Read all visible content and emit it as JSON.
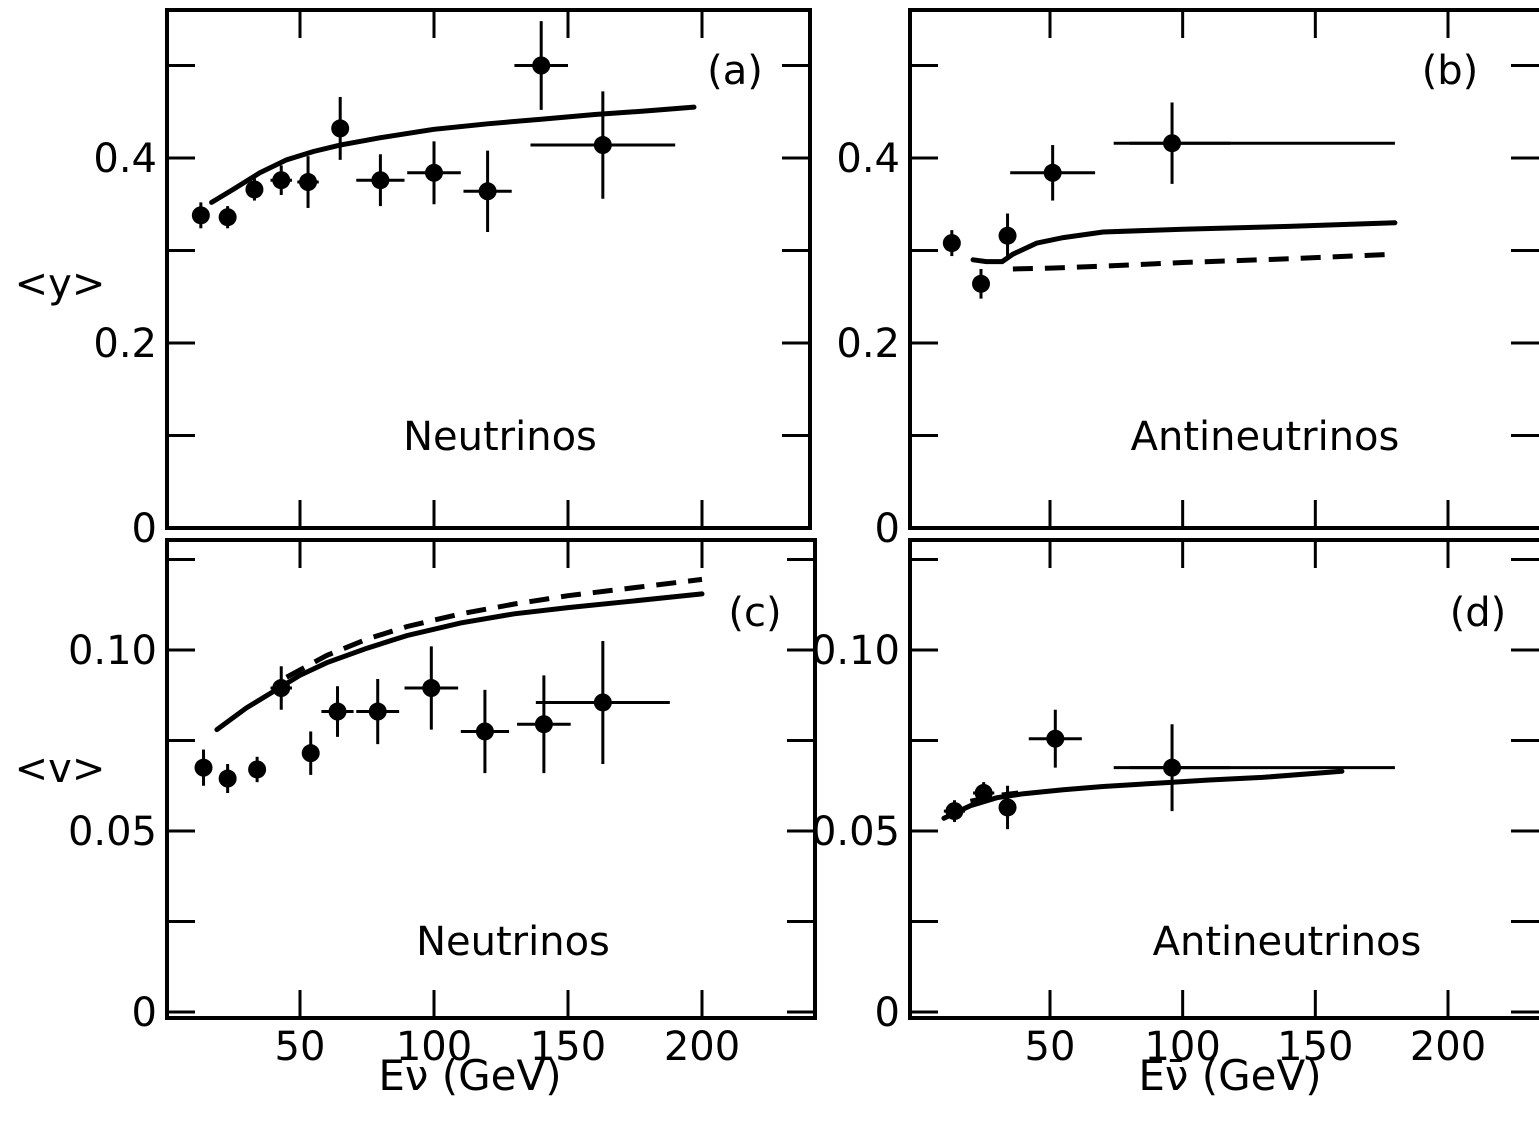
{
  "chart_data": [
    {
      "panel": "a",
      "type": "scatter",
      "tag": "(a)",
      "annotation": "Neutrinos",
      "ylabel": "<y>",
      "xlabel": "",
      "xlim": [
        0,
        240
      ],
      "ylim": [
        0,
        0.56
      ],
      "yticks": [
        0,
        0.2,
        0.4
      ],
      "yticklabels": [
        "0",
        "0.2",
        "0.4"
      ],
      "xticks": [
        50,
        100,
        150,
        200
      ],
      "xticklabels": [],
      "points": [
        {
          "x": 13,
          "y": 0.338,
          "xerr": 3,
          "yerr": 0.014
        },
        {
          "x": 23,
          "y": 0.336,
          "xerr": 3,
          "yerr": 0.012
        },
        {
          "x": 33,
          "y": 0.366,
          "xerr": 3,
          "yerr": 0.012
        },
        {
          "x": 43,
          "y": 0.376,
          "xerr": 4,
          "yerr": 0.016
        },
        {
          "x": 53,
          "y": 0.374,
          "xerr": 4,
          "yerr": 0.028
        },
        {
          "x": 65,
          "y": 0.432,
          "xerr": 3,
          "yerr": 0.034
        },
        {
          "x": 80,
          "y": 0.376,
          "xerr": 9,
          "yerr": 0.028
        },
        {
          "x": 100,
          "y": 0.384,
          "xerr": 10,
          "yerr": 0.034
        },
        {
          "x": 120,
          "y": 0.364,
          "xerr": 9,
          "yerr": 0.044
        },
        {
          "x": 140,
          "y": 0.5,
          "xerr": 10,
          "yerr": 0.048
        },
        {
          "x": 163,
          "y": 0.414,
          "xerr": 27,
          "yerr": 0.058
        }
      ],
      "curves": [
        {
          "style": "solid",
          "x": [
            17,
            25,
            35,
            45,
            55,
            65,
            80,
            100,
            120,
            140,
            160,
            180,
            197
          ],
          "y": [
            0.352,
            0.366,
            0.384,
            0.398,
            0.407,
            0.414,
            0.422,
            0.431,
            0.437,
            0.442,
            0.447,
            0.451,
            0.455
          ]
        }
      ]
    },
    {
      "panel": "b",
      "type": "scatter",
      "tag": "(b)",
      "annotation": "Antineutrinos",
      "ylabel": "",
      "xlabel": "",
      "xlim": [
        0,
        240
      ],
      "ylim": [
        0,
        0.56
      ],
      "yticks": [
        0,
        0.2,
        0.4
      ],
      "yticklabels": [
        "0",
        "0.2",
        "0.4"
      ],
      "xticks": [
        50,
        100,
        150,
        200
      ],
      "xticklabels": [],
      "points": [
        {
          "x": 13,
          "y": 0.308,
          "xerr": 3,
          "yerr": 0.014
        },
        {
          "x": 24,
          "y": 0.264,
          "xerr": 3,
          "yerr": 0.016
        },
        {
          "x": 34,
          "y": 0.316,
          "xerr": 3,
          "yerr": 0.024
        },
        {
          "x": 51,
          "y": 0.384,
          "xerr": 16,
          "yerr": 0.03
        },
        {
          "x": 96,
          "y": 0.416,
          "xerr": 22,
          "yerr": 0.044
        },
        {
          "x": 130,
          "y": 0.416,
          "xerr": 50,
          "yerr": 0
        }
      ],
      "curves": [
        {
          "style": "solid",
          "x": [
            21,
            26,
            32,
            36,
            45,
            55,
            70,
            100,
            140,
            180
          ],
          "y": [
            0.29,
            0.288,
            0.288,
            0.296,
            0.308,
            0.314,
            0.32,
            0.323,
            0.326,
            0.33
          ]
        },
        {
          "style": "dashed",
          "x": [
            36,
            50,
            70,
            100,
            140,
            180
          ],
          "y": [
            0.28,
            0.281,
            0.283,
            0.287,
            0.291,
            0.296
          ]
        }
      ]
    },
    {
      "panel": "c",
      "type": "scatter",
      "tag": "(c)",
      "annotation": "Neutrinos",
      "ylabel": "<v>",
      "xlabel": "Eν (GeV)",
      "xlim": [
        0,
        240
      ],
      "ylim": [
        0,
        0.128
      ],
      "yticks": [
        0,
        0.05,
        0.1
      ],
      "yticklabels": [
        "0",
        "0.05",
        "0.10"
      ],
      "xticks": [
        50,
        100,
        150,
        200
      ],
      "xticklabels": [
        "50",
        "100",
        "150",
        "200"
      ],
      "points": [
        {
          "x": 14,
          "y": 0.0675,
          "xerr": 3,
          "yerr": 0.005
        },
        {
          "x": 23,
          "y": 0.0645,
          "xerr": 3,
          "yerr": 0.004
        },
        {
          "x": 34,
          "y": 0.067,
          "xerr": 3,
          "yerr": 0.0035
        },
        {
          "x": 43,
          "y": 0.0895,
          "xerr": 4,
          "yerr": 0.006
        },
        {
          "x": 54,
          "y": 0.0715,
          "xerr": 3,
          "yerr": 0.006
        },
        {
          "x": 64,
          "y": 0.083,
          "xerr": 6,
          "yerr": 0.007
        },
        {
          "x": 79,
          "y": 0.083,
          "xerr": 8,
          "yerr": 0.009
        },
        {
          "x": 99,
          "y": 0.0895,
          "xerr": 10,
          "yerr": 0.0115
        },
        {
          "x": 119,
          "y": 0.0775,
          "xerr": 9,
          "yerr": 0.0115
        },
        {
          "x": 141,
          "y": 0.0795,
          "xerr": 10,
          "yerr": 0.0135
        },
        {
          "x": 163,
          "y": 0.0855,
          "xerr": 25,
          "yerr": 0.017
        }
      ],
      "curves": [
        {
          "style": "solid",
          "x": [
            19,
            30,
            40,
            50,
            60,
            75,
            90,
            110,
            130,
            150,
            170,
            200
          ],
          "y": [
            0.078,
            0.084,
            0.0885,
            0.093,
            0.0965,
            0.1005,
            0.104,
            0.1075,
            0.11,
            0.1117,
            0.1132,
            0.1155
          ]
        },
        {
          "style": "dashed",
          "x": [
            45,
            60,
            75,
            90,
            110,
            130,
            150,
            170,
            200
          ],
          "y": [
            0.0925,
            0.0985,
            0.103,
            0.1065,
            0.11,
            0.1127,
            0.115,
            0.1168,
            0.1195
          ]
        }
      ]
    },
    {
      "panel": "d",
      "type": "scatter",
      "tag": "(d)",
      "annotation": "Antineutrinos",
      "ylabel": "",
      "xlabel": "Eν̄ (GeV)",
      "xlim": [
        0,
        240
      ],
      "ylim": [
        0,
        0.128
      ],
      "yticks": [
        0,
        0.05,
        0.1
      ],
      "yticklabels": [
        "0",
        "0.05",
        "0.10"
      ],
      "xticks": [
        50,
        100,
        150,
        200
      ],
      "xticklabels": [
        "50",
        "100",
        "150",
        "200"
      ],
      "points": [
        {
          "x": 14,
          "y": 0.0555,
          "xerr": 4,
          "yerr": 0.003
        },
        {
          "x": 25,
          "y": 0.0605,
          "xerr": 4,
          "yerr": 0.003
        },
        {
          "x": 34,
          "y": 0.0565,
          "xerr": 3,
          "yerr": 0.006
        },
        {
          "x": 52,
          "y": 0.0755,
          "xerr": 10,
          "yerr": 0.008
        },
        {
          "x": 96,
          "y": 0.0675,
          "xerr": 22,
          "yerr": 0.012
        },
        {
          "x": 130,
          "y": 0.0675,
          "xerr": 50,
          "yerr": 0
        }
      ],
      "curves": [
        {
          "style": "solid",
          "x": [
            10,
            20,
            30,
            40,
            55,
            70,
            90,
            110,
            130,
            160
          ],
          "y": [
            0.0535,
            0.057,
            0.0592,
            0.0603,
            0.0614,
            0.0623,
            0.0632,
            0.0641,
            0.0648,
            0.0665
          ]
        },
        {
          "style": "dashed",
          "x": [
            20,
            30,
            38
          ],
          "y": [
            0.0582,
            0.0598,
            0.0605
          ]
        }
      ]
    }
  ]
}
